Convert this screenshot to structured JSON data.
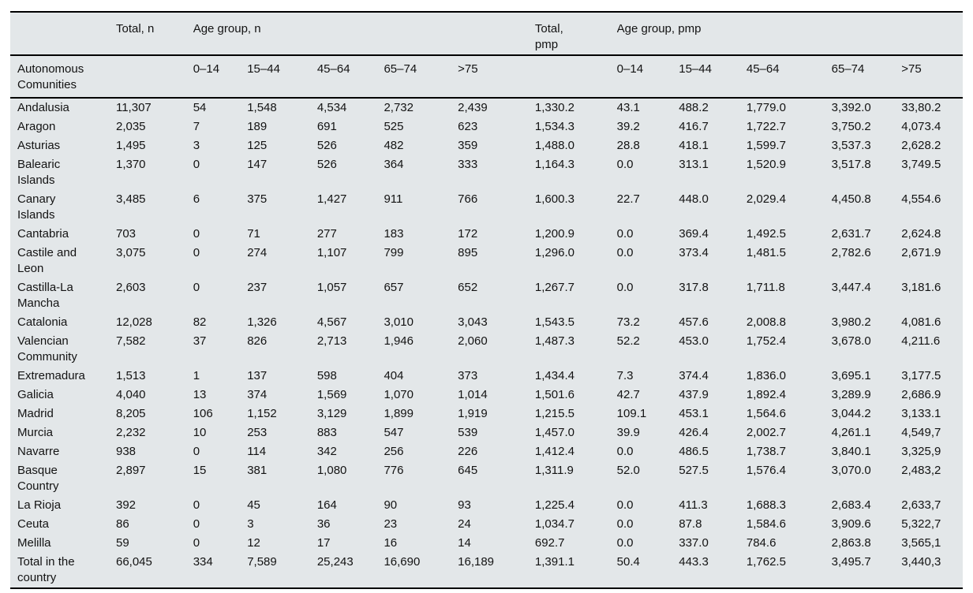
{
  "table": {
    "background_color": "#e3e7e9",
    "rule_color": "#000000",
    "header": {
      "row_header": "Autonomous Comunities",
      "total_n": "Total, n",
      "age_group_n": "Age group, n",
      "total_pmp": "Total,\npmp",
      "age_group_pmp": "Age group, pmp",
      "age_columns_n": [
        "0–14",
        "15–44",
        "45–64",
        "65–74",
        ">75"
      ],
      "age_columns_pmp": [
        "0–14",
        "15–44",
        "45–64",
        "65–74",
        ">75"
      ]
    },
    "rows": [
      {
        "name": "Andalusia",
        "total_n": "11,307",
        "n": [
          "54",
          "1,548",
          "4,534",
          "2,732",
          "2,439"
        ],
        "total_pmp": "1,330.2",
        "pmp": [
          "43.1",
          "488.2",
          "1,779.0",
          "3,392.0",
          "33,80.2"
        ]
      },
      {
        "name": "Aragon",
        "total_n": "2,035",
        "n": [
          "7",
          "189",
          "691",
          "525",
          "623"
        ],
        "total_pmp": "1,534.3",
        "pmp": [
          "39.2",
          "416.7",
          "1,722.7",
          "3,750.2",
          "4,073.4"
        ]
      },
      {
        "name": "Asturias",
        "total_n": "1,495",
        "n": [
          "3",
          "125",
          "526",
          "482",
          "359"
        ],
        "total_pmp": "1,488.0",
        "pmp": [
          "28.8",
          "418.1",
          "1,599.7",
          "3,537.3",
          "2,628.2"
        ]
      },
      {
        "name": "Balearic Islands",
        "total_n": "1,370",
        "n": [
          "0",
          "147",
          "526",
          "364",
          "333"
        ],
        "total_pmp": "1,164.3",
        "pmp": [
          "0.0",
          "313.1",
          "1,520.9",
          "3,517.8",
          "3,749.5"
        ]
      },
      {
        "name": "Canary Islands",
        "total_n": "3,485",
        "n": [
          "6",
          "375",
          "1,427",
          "911",
          "766"
        ],
        "total_pmp": "1,600.3",
        "pmp": [
          "22.7",
          "448.0",
          "2,029.4",
          "4,450.8",
          "4,554.6"
        ]
      },
      {
        "name": "Cantabria",
        "total_n": "703",
        "n": [
          "0",
          "71",
          "277",
          "183",
          "172"
        ],
        "total_pmp": "1,200.9",
        "pmp": [
          "0.0",
          "369.4",
          "1,492.5",
          "2,631.7",
          "2,624.8"
        ]
      },
      {
        "name": "Castile and Leon",
        "total_n": "3,075",
        "n": [
          "0",
          "274",
          "1,107",
          "799",
          "895"
        ],
        "total_pmp": "1,296.0",
        "pmp": [
          "0.0",
          "373.4",
          "1,481.5",
          "2,782.6",
          "2,671.9"
        ]
      },
      {
        "name": "Castilla-La Mancha",
        "total_n": "2,603",
        "n": [
          "0",
          "237",
          "1,057",
          "657",
          "652"
        ],
        "total_pmp": "1,267.7",
        "pmp": [
          "0.0",
          "317.8",
          "1,711.8",
          "3,447.4",
          "3,181.6"
        ]
      },
      {
        "name": "Catalonia",
        "total_n": "12,028",
        "n": [
          "82",
          "1,326",
          "4,567",
          "3,010",
          "3,043"
        ],
        "total_pmp": "1,543.5",
        "pmp": [
          "73.2",
          "457.6",
          "2,008.8",
          "3,980.2",
          "4,081.6"
        ]
      },
      {
        "name": "Valencian Community",
        "total_n": "7,582",
        "n": [
          "37",
          "826",
          "2,713",
          "1,946",
          "2,060"
        ],
        "total_pmp": "1,487.3",
        "pmp": [
          "52.2",
          "453.0",
          "1,752.4",
          "3,678.0",
          "4,211.6"
        ]
      },
      {
        "name": "Extremadura",
        "total_n": "1,513",
        "n": [
          "1",
          "137",
          "598",
          "404",
          "373"
        ],
        "total_pmp": "1,434.4",
        "pmp": [
          "7.3",
          "374.4",
          "1,836.0",
          "3,695.1",
          "3,177.5"
        ]
      },
      {
        "name": "Galicia",
        "total_n": "4,040",
        "n": [
          "13",
          "374",
          "1,569",
          "1,070",
          "1,014"
        ],
        "total_pmp": "1,501.6",
        "pmp": [
          "42.7",
          "437.9",
          "1,892.4",
          "3,289.9",
          "2,686.9"
        ]
      },
      {
        "name": "Madrid",
        "total_n": "8,205",
        "n": [
          "106",
          "1,152",
          "3,129",
          "1,899",
          "1,919"
        ],
        "total_pmp": "1,215.5",
        "pmp": [
          "109.1",
          "453.1",
          "1,564.6",
          "3,044.2",
          "3,133.1"
        ]
      },
      {
        "name": "Murcia",
        "total_n": "2,232",
        "n": [
          "10",
          "253",
          "883",
          "547",
          "539"
        ],
        "total_pmp": "1,457.0",
        "pmp": [
          "39.9",
          "426.4",
          "2,002.7",
          "4,261.1",
          "4,549,7"
        ]
      },
      {
        "name": "Navarre",
        "total_n": "938",
        "n": [
          "0",
          "114",
          "342",
          "256",
          "226"
        ],
        "total_pmp": "1,412.4",
        "pmp": [
          "0.0",
          "486.5",
          "1,738.7",
          "3,840.1",
          "3,325,9"
        ]
      },
      {
        "name": "Basque Country",
        "total_n": "2,897",
        "n": [
          "15",
          "381",
          "1,080",
          "776",
          "645"
        ],
        "total_pmp": "1,311.9",
        "pmp": [
          "52.0",
          "527.5",
          "1,576.4",
          "3,070.0",
          "2,483,2"
        ]
      },
      {
        "name": "La Rioja",
        "total_n": "392",
        "n": [
          "0",
          "45",
          "164",
          "90",
          "93"
        ],
        "total_pmp": "1,225.4",
        "pmp": [
          "0.0",
          "411.3",
          "1,688.3",
          "2,683.4",
          "2,633,7"
        ]
      },
      {
        "name": "Ceuta",
        "total_n": "86",
        "n": [
          "0",
          "3",
          "36",
          "23",
          "24"
        ],
        "total_pmp": "1,034.7",
        "pmp": [
          "0.0",
          "87.8",
          "1,584.6",
          "3,909.6",
          "5,322,7"
        ]
      },
      {
        "name": "Melilla",
        "total_n": "59",
        "n": [
          "0",
          "12",
          "17",
          "16",
          "14"
        ],
        "total_pmp": "692.7",
        "pmp": [
          "0.0",
          "337.0",
          "784.6",
          "2,863.8",
          "3,565,1"
        ]
      },
      {
        "name": "Total in the country",
        "total_n": "66,045",
        "n": [
          "334",
          "7,589",
          "25,243",
          "16,690",
          "16,189"
        ],
        "total_pmp": "1,391.1",
        "pmp": [
          "50.4",
          "443.3",
          "1,762.5",
          "3,495.7",
          "3,440,3"
        ]
      }
    ]
  }
}
